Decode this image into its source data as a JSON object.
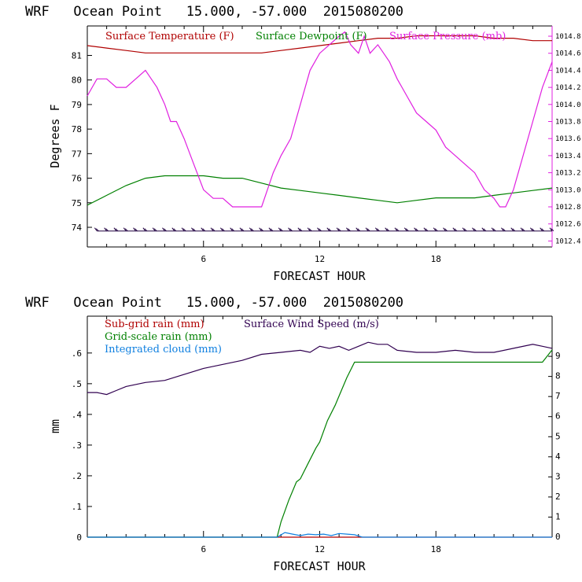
{
  "chart_data": [
    {
      "type": "line",
      "title": "WRF   Ocean Point   15.000, -57.000  2015080200",
      "xlabel": "FORECAST HOUR",
      "ylabel": "Degrees F",
      "xlim": [
        0,
        24
      ],
      "ylim": [
        73.2,
        82.2
      ],
      "y2lim": [
        1012.33,
        1014.92
      ],
      "x_ticks": [
        "6",
        "12",
        "18"
      ],
      "y_ticks": [
        "74",
        "75",
        "76",
        "77",
        "78",
        "79",
        "80",
        "81"
      ],
      "y2_ticks": [
        "1012.4",
        "1012.6",
        "1012.8",
        "1013.0",
        "1013.2",
        "1013.4",
        "1013.6",
        "1013.8",
        "1014.0",
        "1014.2",
        "1014.4",
        "1014.6",
        "1014.8"
      ],
      "grid": false,
      "legend": "top",
      "series": [
        {
          "name": "Surface Temperature (F)",
          "color": "#b00000",
          "axis": "left",
          "x": [
            0,
            1,
            2,
            3,
            4,
            5,
            6,
            7,
            8,
            9,
            10,
            11,
            12,
            13,
            14,
            15,
            16,
            17,
            18,
            19,
            20,
            21,
            22,
            23,
            24
          ],
          "y": [
            81.4,
            81.3,
            81.2,
            81.1,
            81.1,
            81.1,
            81.1,
            81.1,
            81.1,
            81.1,
            81.2,
            81.3,
            81.4,
            81.5,
            81.6,
            81.7,
            81.7,
            81.8,
            81.8,
            81.8,
            81.8,
            81.7,
            81.7,
            81.6,
            81.6
          ]
        },
        {
          "name": "Surface Dewpoint (F)",
          "color": "#008000",
          "axis": "left",
          "x": [
            0,
            1,
            2,
            3,
            4,
            5,
            6,
            7,
            8,
            9,
            10,
            11,
            12,
            13,
            14,
            15,
            16,
            17,
            18,
            19,
            20,
            21,
            22,
            23,
            24
          ],
          "y": [
            74.9,
            75.3,
            75.7,
            76.0,
            76.1,
            76.1,
            76.1,
            76.0,
            76.0,
            75.8,
            75.6,
            75.5,
            75.4,
            75.3,
            75.2,
            75.1,
            75.0,
            75.1,
            75.2,
            75.2,
            75.2,
            75.3,
            75.4,
            75.5,
            75.6
          ]
        },
        {
          "name": "Surface Pressure (mb)",
          "color": "#e020e0",
          "axis": "right",
          "x": [
            0,
            0.5,
            1,
            1.5,
            2,
            2.5,
            3,
            3.3,
            3.6,
            4,
            4.3,
            4.6,
            5,
            5.5,
            6,
            6.5,
            7,
            7.5,
            8,
            8.5,
            9,
            9.3,
            9.6,
            10,
            10.5,
            11,
            11.5,
            12,
            12.5,
            13,
            13.3,
            13.6,
            14,
            14.3,
            14.6,
            15,
            15.3,
            15.6,
            16,
            16.5,
            17,
            17.5,
            18,
            18.5,
            19,
            19.5,
            20,
            20.5,
            21,
            21.3,
            21.6,
            22,
            22.5,
            23,
            23.5,
            24
          ],
          "y": [
            1014.1,
            1014.3,
            1014.3,
            1014.2,
            1014.2,
            1014.3,
            1014.4,
            1014.3,
            1014.2,
            1014.0,
            1013.8,
            1013.8,
            1013.6,
            1013.3,
            1013.0,
            1012.9,
            1012.9,
            1012.8,
            1012.8,
            1012.8,
            1012.8,
            1013.0,
            1013.2,
            1013.4,
            1013.6,
            1014.0,
            1014.4,
            1014.6,
            1014.7,
            1014.8,
            1014.85,
            1014.7,
            1014.6,
            1014.8,
            1014.6,
            1014.7,
            1014.6,
            1014.5,
            1014.3,
            1014.1,
            1013.9,
            1013.8,
            1013.7,
            1013.5,
            1013.4,
            1013.3,
            1013.2,
            1013.0,
            1012.9,
            1012.8,
            1012.8,
            1013.0,
            1013.4,
            1013.8,
            1014.2,
            1014.5
          ]
        }
      ],
      "wind_barbs": {
        "color": "#200040",
        "level": 73.85,
        "x_start": 0.5,
        "x_end": 24,
        "step": 0.5
      }
    },
    {
      "type": "line",
      "title": "WRF   Ocean Point   15.000, -57.000  2015080200",
      "xlabel": "FORECAST HOUR",
      "ylabel": "mm",
      "xlim": [
        0,
        24
      ],
      "ylim": [
        0,
        0.72
      ],
      "y2lim": [
        0,
        11.0
      ],
      "x_ticks": [
        "6",
        "12",
        "18"
      ],
      "y_ticks": [
        "0",
        ".1",
        ".2",
        ".3",
        ".4",
        ".5",
        ".6"
      ],
      "y2_ticks": [
        "0",
        "1",
        "2",
        "3",
        "4",
        "5",
        "6",
        "7",
        "8",
        "9"
      ],
      "grid": false,
      "legend": "top-left",
      "series": [
        {
          "name": "Sub-grid rain (mm)",
          "color": "#b00000",
          "axis": "left",
          "x": [
            0,
            24
          ],
          "y": [
            0,
            0
          ]
        },
        {
          "name": "Grid-scale rain (mm)",
          "color": "#008000",
          "axis": "left",
          "x": [
            0,
            9.8,
            10,
            10.4,
            10.8,
            11,
            11.4,
            11.8,
            12,
            12.4,
            12.8,
            13,
            13.4,
            13.8,
            14,
            16,
            18,
            20,
            22,
            23.5,
            24
          ],
          "y": [
            0,
            0,
            0.05,
            0.12,
            0.18,
            0.19,
            0.24,
            0.29,
            0.31,
            0.38,
            0.43,
            0.46,
            0.52,
            0.57,
            0.57,
            0.57,
            0.57,
            0.57,
            0.57,
            0.57,
            0.61
          ]
        },
        {
          "name": "Integrated cloud (mm)",
          "color": "#1080e0",
          "axis": "left",
          "x": [
            0,
            9.8,
            10.2,
            10.6,
            11,
            11.4,
            11.8,
            12.2,
            12.6,
            13,
            13.4,
            13.8,
            14.2,
            24
          ],
          "y": [
            0,
            0,
            0.015,
            0.01,
            0.005,
            0.01,
            0.008,
            0.01,
            0.005,
            0.012,
            0.01,
            0.008,
            0,
            0
          ]
        },
        {
          "name": "Surface Wind Speed (m/s)",
          "color": "#300050",
          "axis": "right",
          "x": [
            0,
            0.5,
            1,
            1.5,
            2,
            3,
            4,
            5,
            6,
            7,
            8,
            9,
            10,
            11,
            11.5,
            12,
            12.5,
            13,
            13.5,
            14,
            14.5,
            15,
            15.5,
            16,
            17,
            18,
            19,
            20,
            21,
            22,
            23,
            23.5,
            24
          ],
          "y": [
            7.2,
            7.2,
            7.1,
            7.3,
            7.5,
            7.7,
            7.8,
            8.1,
            8.4,
            8.6,
            8.8,
            9.1,
            9.2,
            9.3,
            9.2,
            9.5,
            9.4,
            9.5,
            9.3,
            9.5,
            9.7,
            9.6,
            9.6,
            9.3,
            9.2,
            9.2,
            9.3,
            9.2,
            9.2,
            9.4,
            9.6,
            9.5,
            9.4
          ]
        }
      ]
    }
  ]
}
